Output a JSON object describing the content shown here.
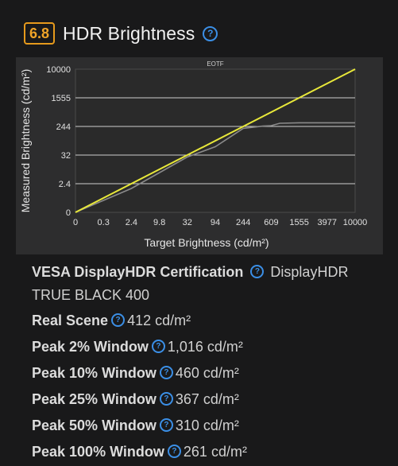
{
  "header": {
    "score": "6.8",
    "title": "HDR Brightness",
    "help_icon": "?"
  },
  "chart_data": {
    "type": "line",
    "title": "EOTF",
    "xlabel": "Target Brightness (cd/m²)",
    "ylabel": "Measured Brightness (cd/m²)",
    "x_ticks": [
      "0",
      "0.3",
      "2.4",
      "9.8",
      "32",
      "94",
      "244",
      "609",
      "1555",
      "3977",
      "10000"
    ],
    "y_ticks": [
      "0",
      "2.4",
      "32",
      "244",
      "1555",
      "10000"
    ],
    "series": [
      {
        "color": "#e8e83a",
        "x": [
          0,
          10000
        ],
        "y": [
          0,
          10000
        ]
      },
      {
        "color": "#8a8a8a",
        "x": [
          0,
          2.4,
          32,
          94,
          244,
          500,
          609,
          900,
          1555,
          3977,
          10000
        ],
        "y": [
          0,
          2.0,
          30,
          94,
          230,
          260,
          280,
          390,
          412,
          412,
          412
        ]
      }
    ],
    "grid": true
  },
  "specs": {
    "vesa": {
      "label": "VESA DisplayHDR Certification",
      "value": "DisplayHDR TRUE BLACK 400"
    },
    "rows": [
      {
        "label": "Real Scene",
        "value": "412 cd/m²"
      },
      {
        "label": "Peak 2% Window",
        "value": "1,016 cd/m²"
      },
      {
        "label": "Peak 10% Window",
        "value": "460 cd/m²"
      },
      {
        "label": "Peak 25% Window",
        "value": "367 cd/m²"
      },
      {
        "label": "Peak 50% Window",
        "value": "310 cd/m²"
      },
      {
        "label": "Peak 100% Window",
        "value": "261 cd/m²"
      }
    ]
  },
  "colors": {
    "accent": "#e69a1c",
    "help": "#3b8fe6",
    "background": "#19191a"
  }
}
